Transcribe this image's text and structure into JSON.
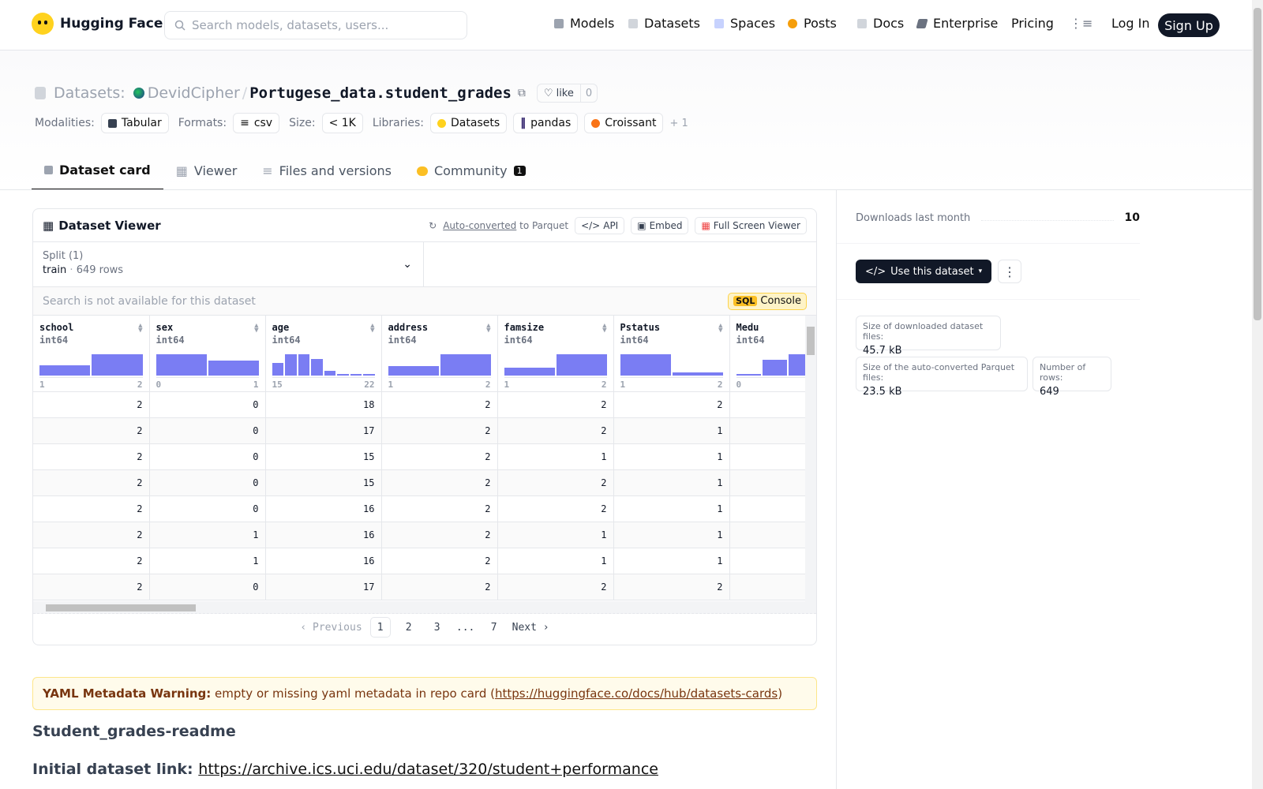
{
  "brand": "Hugging Face",
  "search": {
    "placeholder": "Search models, datasets, users..."
  },
  "nav": {
    "models": "Models",
    "datasets": "Datasets",
    "spaces": "Spaces",
    "posts": "Posts",
    "docs": "Docs",
    "enterprise": "Enterprise",
    "pricing": "Pricing",
    "login": "Log In",
    "signup": "Sign Up"
  },
  "repo": {
    "section": "Datasets:",
    "owner": "DevidCipher",
    "sep": "/",
    "name": "Portugese_data.student_grades",
    "like_label": "like",
    "like_count": "0"
  },
  "meta": {
    "modalities_label": "Modalities:",
    "modality": "Tabular",
    "formats_label": "Formats:",
    "format": "csv",
    "size_label": "Size:",
    "size": "< 1K",
    "libraries_label": "Libraries:",
    "lib1": "Datasets",
    "lib2": "pandas",
    "lib3": "Croissant",
    "more": "+ 1"
  },
  "tabs": {
    "card": "Dataset card",
    "viewer": "Viewer",
    "files": "Files and versions",
    "community": "Community",
    "community_count": "1"
  },
  "viewer": {
    "title": "Dataset Viewer",
    "autoconv": "Auto-converted",
    "to_parquet": "to Parquet",
    "api": "API",
    "embed": "Embed",
    "fullscreen": "Full Screen Viewer",
    "split_label": "Split (1)",
    "split_name": "train",
    "split_rows": "649 rows",
    "search_na": "Search is not available for this dataset",
    "sql": "SQL",
    "console": "Console",
    "columns": [
      {
        "name": "school",
        "type": "int64",
        "min": "1",
        "max": "2",
        "hist": [
          0.45,
          0.95
        ]
      },
      {
        "name": "sex",
        "type": "int64",
        "min": "0",
        "max": "1",
        "hist": [
          0.95,
          0.65
        ]
      },
      {
        "name": "age",
        "type": "int64",
        "min": "15",
        "max": "22",
        "hist": [
          0.55,
          0.95,
          0.95,
          0.75,
          0.2,
          0.06,
          0.04,
          0.04
        ]
      },
      {
        "name": "address",
        "type": "int64",
        "min": "1",
        "max": "2",
        "hist": [
          0.4,
          0.95
        ]
      },
      {
        "name": "famsize",
        "type": "int64",
        "min": "1",
        "max": "2",
        "hist": [
          0.35,
          0.95
        ]
      },
      {
        "name": "Pstatus",
        "type": "int64",
        "min": "1",
        "max": "2",
        "hist": [
          0.95,
          0.12
        ]
      },
      {
        "name": "Medu",
        "type": "int64",
        "min": "0",
        "max": "",
        "hist": [
          0.05,
          0.7,
          0.95,
          0.75
        ]
      }
    ],
    "rows": [
      [
        "2",
        "0",
        "18",
        "2",
        "2",
        "2",
        ""
      ],
      [
        "2",
        "0",
        "17",
        "2",
        "2",
        "1",
        ""
      ],
      [
        "2",
        "0",
        "15",
        "2",
        "1",
        "1",
        ""
      ],
      [
        "2",
        "0",
        "15",
        "2",
        "2",
        "1",
        ""
      ],
      [
        "2",
        "0",
        "16",
        "2",
        "2",
        "1",
        ""
      ],
      [
        "2",
        "1",
        "16",
        "2",
        "1",
        "1",
        ""
      ],
      [
        "2",
        "1",
        "16",
        "2",
        "1",
        "1",
        ""
      ],
      [
        "2",
        "0",
        "17",
        "2",
        "2",
        "2",
        ""
      ]
    ],
    "pager": {
      "prev": "Previous",
      "p1": "1",
      "p2": "2",
      "p3": "3",
      "ellipsis": "...",
      "p7": "7",
      "next": "Next"
    }
  },
  "sidebar": {
    "downloads_label": "Downloads last month",
    "downloads": "10",
    "use_dataset": "Use this dataset",
    "dl_size_label": "Size of downloaded dataset files:",
    "dl_size": "45.7 kB",
    "parquet_label": "Size of the auto-converted Parquet files:",
    "parquet_size": "23.5 kB",
    "rows_label": "Number of rows:",
    "rows": "649"
  },
  "card": {
    "warn_bold": "YAML Metadata Warning:",
    "warn_text": " empty or missing yaml metadata in repo card (",
    "warn_link": "https://huggingface.co/docs/hub/datasets-cards",
    "warn_end": ")",
    "heading": "Student_grades-readme",
    "initial_label": "Initial dataset link: ",
    "initial_link": "https://archive.ics.uci.edu/dataset/320/student+performance"
  },
  "colors": {
    "accent": "#6366f1",
    "dark": "#111827",
    "warning_bg": "#fffbeb"
  }
}
